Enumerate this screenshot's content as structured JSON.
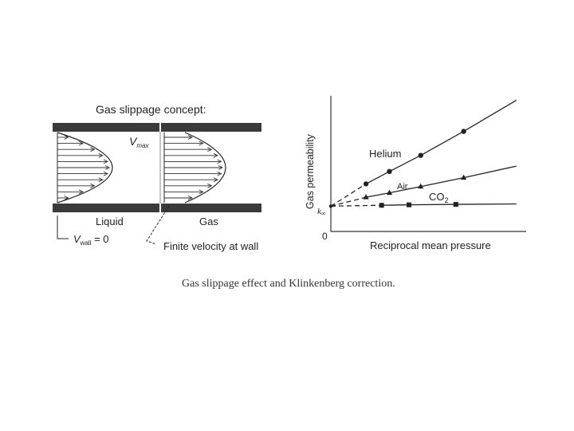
{
  "left_panel": {
    "title": "Gas slippage concept:",
    "vmax_symbol": "V",
    "vmax_sub": "max",
    "liquid_label": "Liquid",
    "gas_label": "Gas",
    "vwall_symbol": "V",
    "vwall_sub": "wall",
    "vwall_rest": " = 0",
    "finite_label": "Finite velocity at wall"
  },
  "chart_data": {
    "type": "line",
    "ylabel": "Gas permeability",
    "xlabel": "Reciprocal mean pressure",
    "y_intercept_label": "k",
    "y_intercept_sub": "∞",
    "origin_label": "0",
    "series": [
      {
        "name": "Helium",
        "marker": "circle",
        "x": [
          0.0,
          0.18,
          0.3,
          0.46,
          0.68,
          0.95
        ],
        "y": [
          0.06,
          0.31,
          0.45,
          0.63,
          0.9,
          1.25
        ]
      },
      {
        "name": "Air",
        "marker": "triangle",
        "x": [
          0.0,
          0.18,
          0.3,
          0.46,
          0.68,
          0.95
        ],
        "y": [
          0.06,
          0.16,
          0.21,
          0.28,
          0.38,
          0.51
        ]
      },
      {
        "name": "CO2",
        "name_main": "CO",
        "name_sub": "2",
        "marker": "square",
        "x": [
          0.0,
          0.26,
          0.4,
          0.64,
          0.95
        ],
        "y": [
          0.06,
          0.07,
          0.075,
          0.08,
          0.085
        ]
      }
    ],
    "extrapolated_to_zero": true,
    "grid": false
  },
  "caption": "Gas slippage effect and Klinkenberg correction."
}
